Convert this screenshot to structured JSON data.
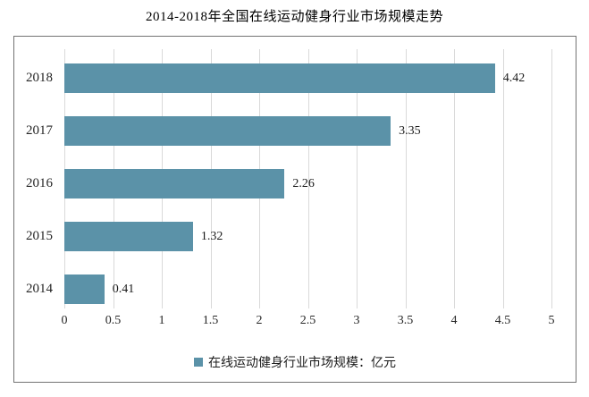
{
  "chart_data": {
    "type": "bar",
    "orientation": "horizontal",
    "title": "2014-2018年全国在线运动健身行业市场规模走势",
    "categories": [
      "2018",
      "2017",
      "2016",
      "2015",
      "2014"
    ],
    "values": [
      4.42,
      3.35,
      2.26,
      1.32,
      0.41
    ],
    "value_labels": [
      "4.42",
      "3.35",
      "2.26",
      "1.32",
      "0.41"
    ],
    "legend": "在线运动健身行业市场规模：亿元",
    "legend_marker": "square-icon",
    "legend_position": "bottom",
    "xlabel": "",
    "ylabel": "",
    "xlim": [
      0,
      5
    ],
    "x_ticks": [
      "0",
      "0.5",
      "1",
      "1.5",
      "2",
      "2.5",
      "3",
      "3.5",
      "4",
      "4.5",
      "5"
    ],
    "grid": "vertical-only",
    "colors": {
      "bar": "#5b92a8",
      "gridline": "#d9d9d9",
      "frame_border": "#737373",
      "label": "#262626",
      "title": "#000000",
      "background": "#ffffff"
    }
  }
}
